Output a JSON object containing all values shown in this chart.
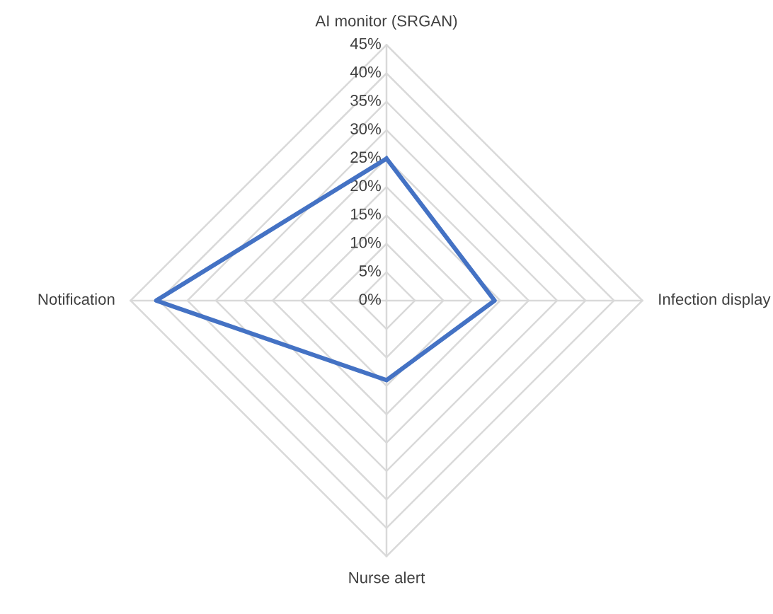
{
  "chart_data": {
    "type": "radar",
    "categories": [
      "AI monitor (SRGAN)",
      "Infection display",
      "Nurse alert",
      "Notification"
    ],
    "series": [
      {
        "color": "#4472c4",
        "values": [
          25,
          19,
          14,
          40.5
        ]
      }
    ],
    "ylim": [
      0,
      45
    ],
    "yticks": [
      {
        "value": 0,
        "label": "0%"
      },
      {
        "value": 5,
        "label": "5%"
      },
      {
        "value": 10,
        "label": "10%"
      },
      {
        "value": 15,
        "label": "15%"
      },
      {
        "value": 20,
        "label": "20%"
      },
      {
        "value": 25,
        "label": "25%"
      },
      {
        "value": 30,
        "label": "30%"
      },
      {
        "value": 35,
        "label": "35%"
      },
      {
        "value": 40,
        "label": "40%"
      },
      {
        "value": 45,
        "label": "45%"
      }
    ],
    "grid": true,
    "marker": "none",
    "line_style": "solid"
  }
}
